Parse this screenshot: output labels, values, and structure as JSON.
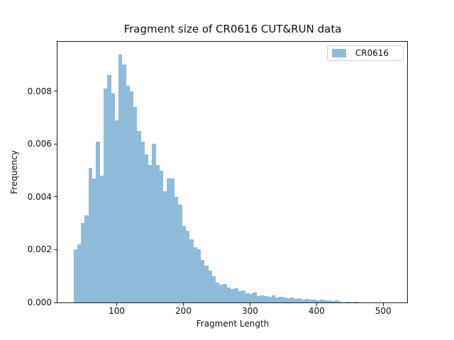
{
  "chart": {
    "title": "Fragment size of CR0616 CUT&RUN data",
    "xlabel": "Fragment Length",
    "ylabel": "Frequency",
    "legend_label": "CR0616",
    "colors": {
      "bar": "#8fbbd9",
      "spine": "#1a1a1a",
      "text": "#111111",
      "legend_border": "#cccccc",
      "background": "#ffffff"
    }
  },
  "chart_data": {
    "type": "bar",
    "subtype": "histogram",
    "title": "Fragment size of CR0616 CUT&RUN data",
    "xlabel": "Fragment Length",
    "ylabel": "Frequency",
    "legend": [
      "CR0616"
    ],
    "legend_position": "upper right",
    "grid": false,
    "bar_color": "#8fbbd9",
    "bin_start": 35.0,
    "bin_width": 5.61,
    "xlim": [
      11,
      536
    ],
    "ylim": [
      0,
      0.00987
    ],
    "xticks": [
      100,
      200,
      300,
      400,
      500
    ],
    "xtick_labels": [
      "100",
      "200",
      "300",
      "400",
      "500"
    ],
    "yticks": [
      0.0,
      0.002,
      0.004,
      0.006,
      0.008
    ],
    "ytick_labels": [
      "0.000",
      "0.002",
      "0.004",
      "0.006",
      "0.008"
    ],
    "values": [
      0.002,
      0.0022,
      0.003,
      0.0033,
      0.0051,
      0.0047,
      0.0061,
      0.0048,
      0.0081,
      0.0086,
      0.0079,
      0.0069,
      0.0094,
      0.009,
      0.0082,
      0.008,
      0.0074,
      0.0065,
      0.0061,
      0.0056,
      0.0052,
      0.006,
      0.0052,
      0.005,
      0.0042,
      0.0047,
      0.0047,
      0.004,
      0.0037,
      0.0029,
      0.0027,
      0.0024,
      0.0021,
      0.002,
      0.0016,
      0.0014,
      0.0012,
      0.001,
      0.00076,
      0.00066,
      0.00069,
      0.00057,
      0.0005,
      0.00055,
      0.00044,
      0.00046,
      0.00035,
      0.00033,
      0.00037,
      0.00025,
      0.00028,
      0.00023,
      0.00021,
      0.00027,
      0.0002,
      0.00021,
      0.00018,
      0.00016,
      0.00018,
      0.00014,
      0.00015,
      0.00012,
      0.00013,
      0.0001,
      0.00012,
      9e-05,
      0.0001,
      7e-05,
      8e-05,
      5e-05,
      7e-05,
      4e-05,
      0,
      3e-05,
      0,
      2e-05,
      0,
      0,
      0,
      0,
      0,
      0,
      0,
      0,
      0
    ]
  }
}
